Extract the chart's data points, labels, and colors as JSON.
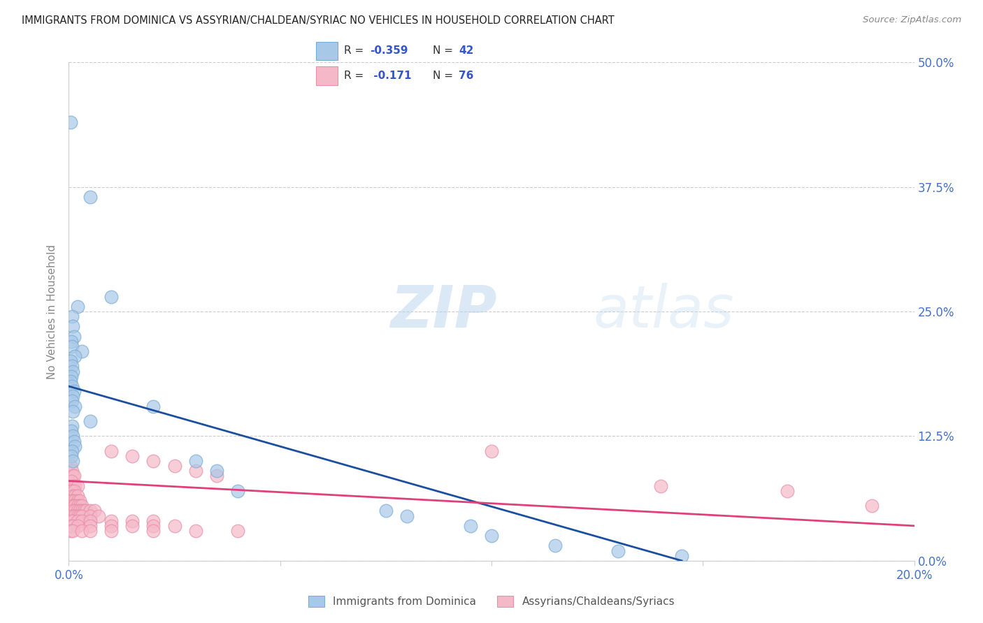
{
  "title": "IMMIGRANTS FROM DOMINICA VS ASSYRIAN/CHALDEAN/SYRIAC NO VEHICLES IN HOUSEHOLD CORRELATION CHART",
  "source": "Source: ZipAtlas.com",
  "ylabel": "No Vehicles in Household",
  "ytick_values": [
    0.0,
    12.5,
    25.0,
    37.5,
    50.0
  ],
  "xlim": [
    0,
    20.0
  ],
  "ylim": [
    0,
    50.0
  ],
  "legend_label_blue": "Immigrants from Dominica",
  "legend_label_pink": "Assyrians/Chaldeans/Syriacs",
  "watermark_zip": "ZIP",
  "watermark_atlas": "atlas",
  "blue_fill": "#a8c8e8",
  "blue_edge": "#7aadd4",
  "pink_fill": "#f5b8c8",
  "pink_edge": "#e890a8",
  "blue_line": "#1a4fa0",
  "pink_line": "#e0407a",
  "legend_text_color": "#3355cc",
  "blue_scatter": [
    [
      0.05,
      44.0
    ],
    [
      0.5,
      36.5
    ],
    [
      1.0,
      26.5
    ],
    [
      0.2,
      25.5
    ],
    [
      0.08,
      24.5
    ],
    [
      0.1,
      23.5
    ],
    [
      0.12,
      22.5
    ],
    [
      0.06,
      22.0
    ],
    [
      0.08,
      21.5
    ],
    [
      0.3,
      21.0
    ],
    [
      0.15,
      20.5
    ],
    [
      0.05,
      20.0
    ],
    [
      0.08,
      19.5
    ],
    [
      0.1,
      19.0
    ],
    [
      0.06,
      18.5
    ],
    [
      0.05,
      18.0
    ],
    [
      0.08,
      17.5
    ],
    [
      0.12,
      17.0
    ],
    [
      0.1,
      16.5
    ],
    [
      0.08,
      16.0
    ],
    [
      0.15,
      15.5
    ],
    [
      0.1,
      15.0
    ],
    [
      2.0,
      15.5
    ],
    [
      0.5,
      14.0
    ],
    [
      0.08,
      13.5
    ],
    [
      0.06,
      13.0
    ],
    [
      0.1,
      12.5
    ],
    [
      0.12,
      12.0
    ],
    [
      0.15,
      11.5
    ],
    [
      0.08,
      11.0
    ],
    [
      0.06,
      10.5
    ],
    [
      0.1,
      10.0
    ],
    [
      3.0,
      10.0
    ],
    [
      3.5,
      9.0
    ],
    [
      4.0,
      7.0
    ],
    [
      7.5,
      5.0
    ],
    [
      8.0,
      4.5
    ],
    [
      9.5,
      3.5
    ],
    [
      10.0,
      2.5
    ],
    [
      11.5,
      1.5
    ],
    [
      13.0,
      1.0
    ],
    [
      14.5,
      0.5
    ]
  ],
  "pink_scatter": [
    [
      0.05,
      9.5
    ],
    [
      0.08,
      9.0
    ],
    [
      0.1,
      8.5
    ],
    [
      0.12,
      8.5
    ],
    [
      0.06,
      8.0
    ],
    [
      0.1,
      7.5
    ],
    [
      0.15,
      7.5
    ],
    [
      0.2,
      7.5
    ],
    [
      0.05,
      7.0
    ],
    [
      0.08,
      7.0
    ],
    [
      0.12,
      7.0
    ],
    [
      0.1,
      6.5
    ],
    [
      0.15,
      6.5
    ],
    [
      0.2,
      6.5
    ],
    [
      0.06,
      6.0
    ],
    [
      0.1,
      6.0
    ],
    [
      0.15,
      6.0
    ],
    [
      0.2,
      6.0
    ],
    [
      0.25,
      6.0
    ],
    [
      0.08,
      5.5
    ],
    [
      0.12,
      5.5
    ],
    [
      0.15,
      5.5
    ],
    [
      0.2,
      5.5
    ],
    [
      0.25,
      5.5
    ],
    [
      0.3,
      5.5
    ],
    [
      0.1,
      5.0
    ],
    [
      0.15,
      5.0
    ],
    [
      0.2,
      5.0
    ],
    [
      0.25,
      5.0
    ],
    [
      0.3,
      5.0
    ],
    [
      0.35,
      5.0
    ],
    [
      0.4,
      5.0
    ],
    [
      0.5,
      5.0
    ],
    [
      0.6,
      5.0
    ],
    [
      0.05,
      4.5
    ],
    [
      0.1,
      4.5
    ],
    [
      0.15,
      4.5
    ],
    [
      0.2,
      4.5
    ],
    [
      0.25,
      4.5
    ],
    [
      0.3,
      4.5
    ],
    [
      0.5,
      4.5
    ],
    [
      0.7,
      4.5
    ],
    [
      0.05,
      4.0
    ],
    [
      0.1,
      4.0
    ],
    [
      0.2,
      4.0
    ],
    [
      0.3,
      4.0
    ],
    [
      0.5,
      4.0
    ],
    [
      1.0,
      4.0
    ],
    [
      1.5,
      4.0
    ],
    [
      2.0,
      4.0
    ],
    [
      0.05,
      3.5
    ],
    [
      0.1,
      3.5
    ],
    [
      0.2,
      3.5
    ],
    [
      0.5,
      3.5
    ],
    [
      1.0,
      3.5
    ],
    [
      1.5,
      3.5
    ],
    [
      2.0,
      3.5
    ],
    [
      2.5,
      3.5
    ],
    [
      0.05,
      3.0
    ],
    [
      0.1,
      3.0
    ],
    [
      0.3,
      3.0
    ],
    [
      0.5,
      3.0
    ],
    [
      1.0,
      3.0
    ],
    [
      2.0,
      3.0
    ],
    [
      3.0,
      3.0
    ],
    [
      4.0,
      3.0
    ],
    [
      1.0,
      11.0
    ],
    [
      1.5,
      10.5
    ],
    [
      2.0,
      10.0
    ],
    [
      2.5,
      9.5
    ],
    [
      3.0,
      9.0
    ],
    [
      3.5,
      8.5
    ],
    [
      10.0,
      11.0
    ],
    [
      14.0,
      7.5
    ],
    [
      17.0,
      7.0
    ],
    [
      19.0,
      5.5
    ]
  ],
  "blue_line_x": [
    0.0,
    14.5
  ],
  "blue_line_y": [
    17.5,
    0.0
  ],
  "pink_line_x": [
    0.0,
    20.0
  ],
  "pink_line_y": [
    8.0,
    3.5
  ]
}
